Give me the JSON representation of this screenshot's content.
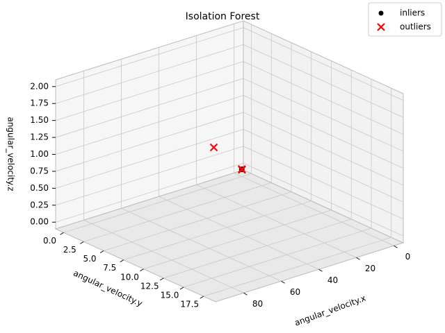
{
  "chart_data": {
    "type": "scatter3d",
    "title": "Isolation Forest",
    "xlabel": "angular_velocity.x",
    "ylabel": "angular_velocity.y",
    "zlabel": "angular_velocity.z",
    "xlim": [
      -5,
      95
    ],
    "ylim": [
      -1,
      19
    ],
    "zlim": [
      -0.1,
      2.1
    ],
    "xticks": [
      0,
      20,
      40,
      60,
      80
    ],
    "yticks": [
      {
        "value": 0,
        "label": "0.0"
      },
      2.5,
      {
        "value": 5,
        "label": "5.0"
      },
      7.5,
      {
        "value": 10,
        "label": "10.0"
      },
      12.5,
      {
        "value": 15,
        "label": "15.0"
      },
      17.5
    ],
    "zticks": [
      {
        "value": 0,
        "label": "0.00"
      },
      0.25,
      {
        "value": 0.5,
        "label": "0.50"
      },
      0.75,
      {
        "value": 1,
        "label": "1.00"
      },
      1.25,
      {
        "value": 1.5,
        "label": "1.50"
      },
      1.75,
      {
        "value": 2,
        "label": "2.00"
      }
    ],
    "grid": true,
    "legend": "upper right",
    "series": [
      {
        "name": "inliers",
        "color": "#000000",
        "marker": "o",
        "x": [
          0,
          0.3,
          0.8
        ],
        "y": [
          0,
          0,
          0.2
        ],
        "z": [
          0,
          0.01,
          0.03
        ]
      },
      {
        "name": "outliers",
        "color": "#ff0000",
        "marker": "x",
        "x": [
          15,
          0,
          0.5
        ],
        "y": [
          0,
          0,
          0.1
        ],
        "z": [
          0.46,
          0,
          0.02
        ]
      }
    ]
  }
}
